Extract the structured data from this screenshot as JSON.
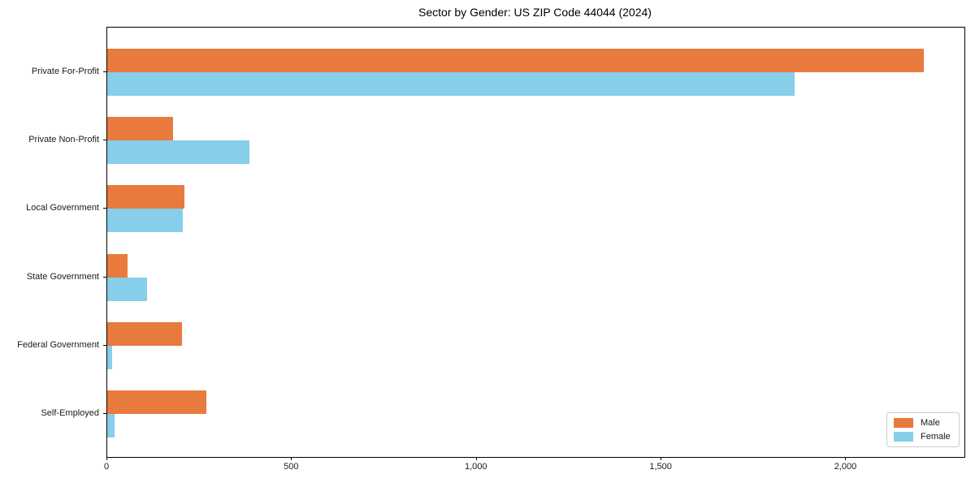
{
  "title": "Sector by Gender: US ZIP Code 44044 (2024)",
  "chart_data": {
    "type": "bar",
    "orientation": "horizontal",
    "title": "Sector by Gender: US ZIP Code 44044 (2024)",
    "categories": [
      "Private For-Profit",
      "Private Non-Profit",
      "Local Government",
      "State Government",
      "Federal Government",
      "Self-Employed"
    ],
    "series": [
      {
        "name": "Male",
        "color": "#E97A3D",
        "values": [
          2210,
          178,
          209,
          55,
          203,
          269
        ]
      },
      {
        "name": "Female",
        "color": "#87CEEB",
        "values": [
          1860,
          385,
          205,
          108,
          13,
          20
        ]
      }
    ],
    "xlabel": "",
    "ylabel": "",
    "xlim": [
      0,
      2320
    ],
    "x_ticks": [
      0,
      500,
      1000,
      1500,
      2000
    ],
    "x_tick_labels": [
      "0",
      "500",
      "1,000",
      "1,500",
      "2,000"
    ],
    "grid": false,
    "legend": {
      "position": "lower right",
      "entries": [
        "Male",
        "Female"
      ]
    }
  }
}
